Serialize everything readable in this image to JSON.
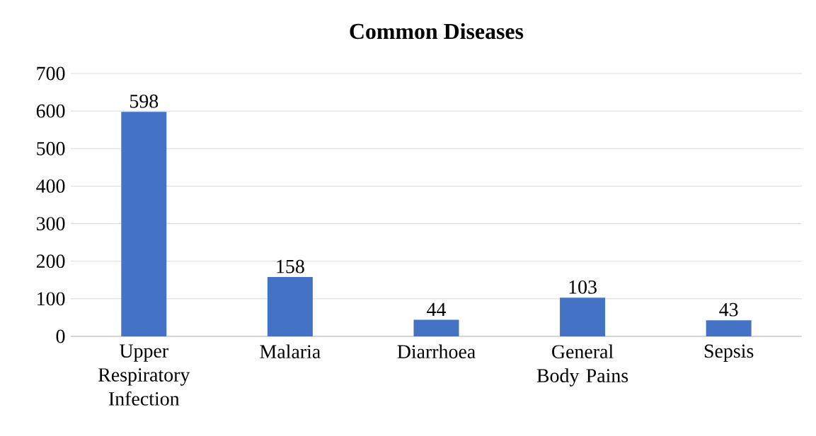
{
  "chart_data": {
    "type": "bar",
    "title": "Common Diseases",
    "categories": [
      "Upper Respiratory Infection",
      "Malaria",
      "Diarrhoea",
      "General Body Pains",
      "Sepsis"
    ],
    "values": [
      598,
      158,
      44,
      103,
      43
    ],
    "color": "#4472c4",
    "ylim": [
      0,
      700
    ],
    "yticks": [
      0,
      100,
      200,
      300,
      400,
      500,
      600,
      700
    ],
    "grid": "y",
    "data_labels": true
  }
}
